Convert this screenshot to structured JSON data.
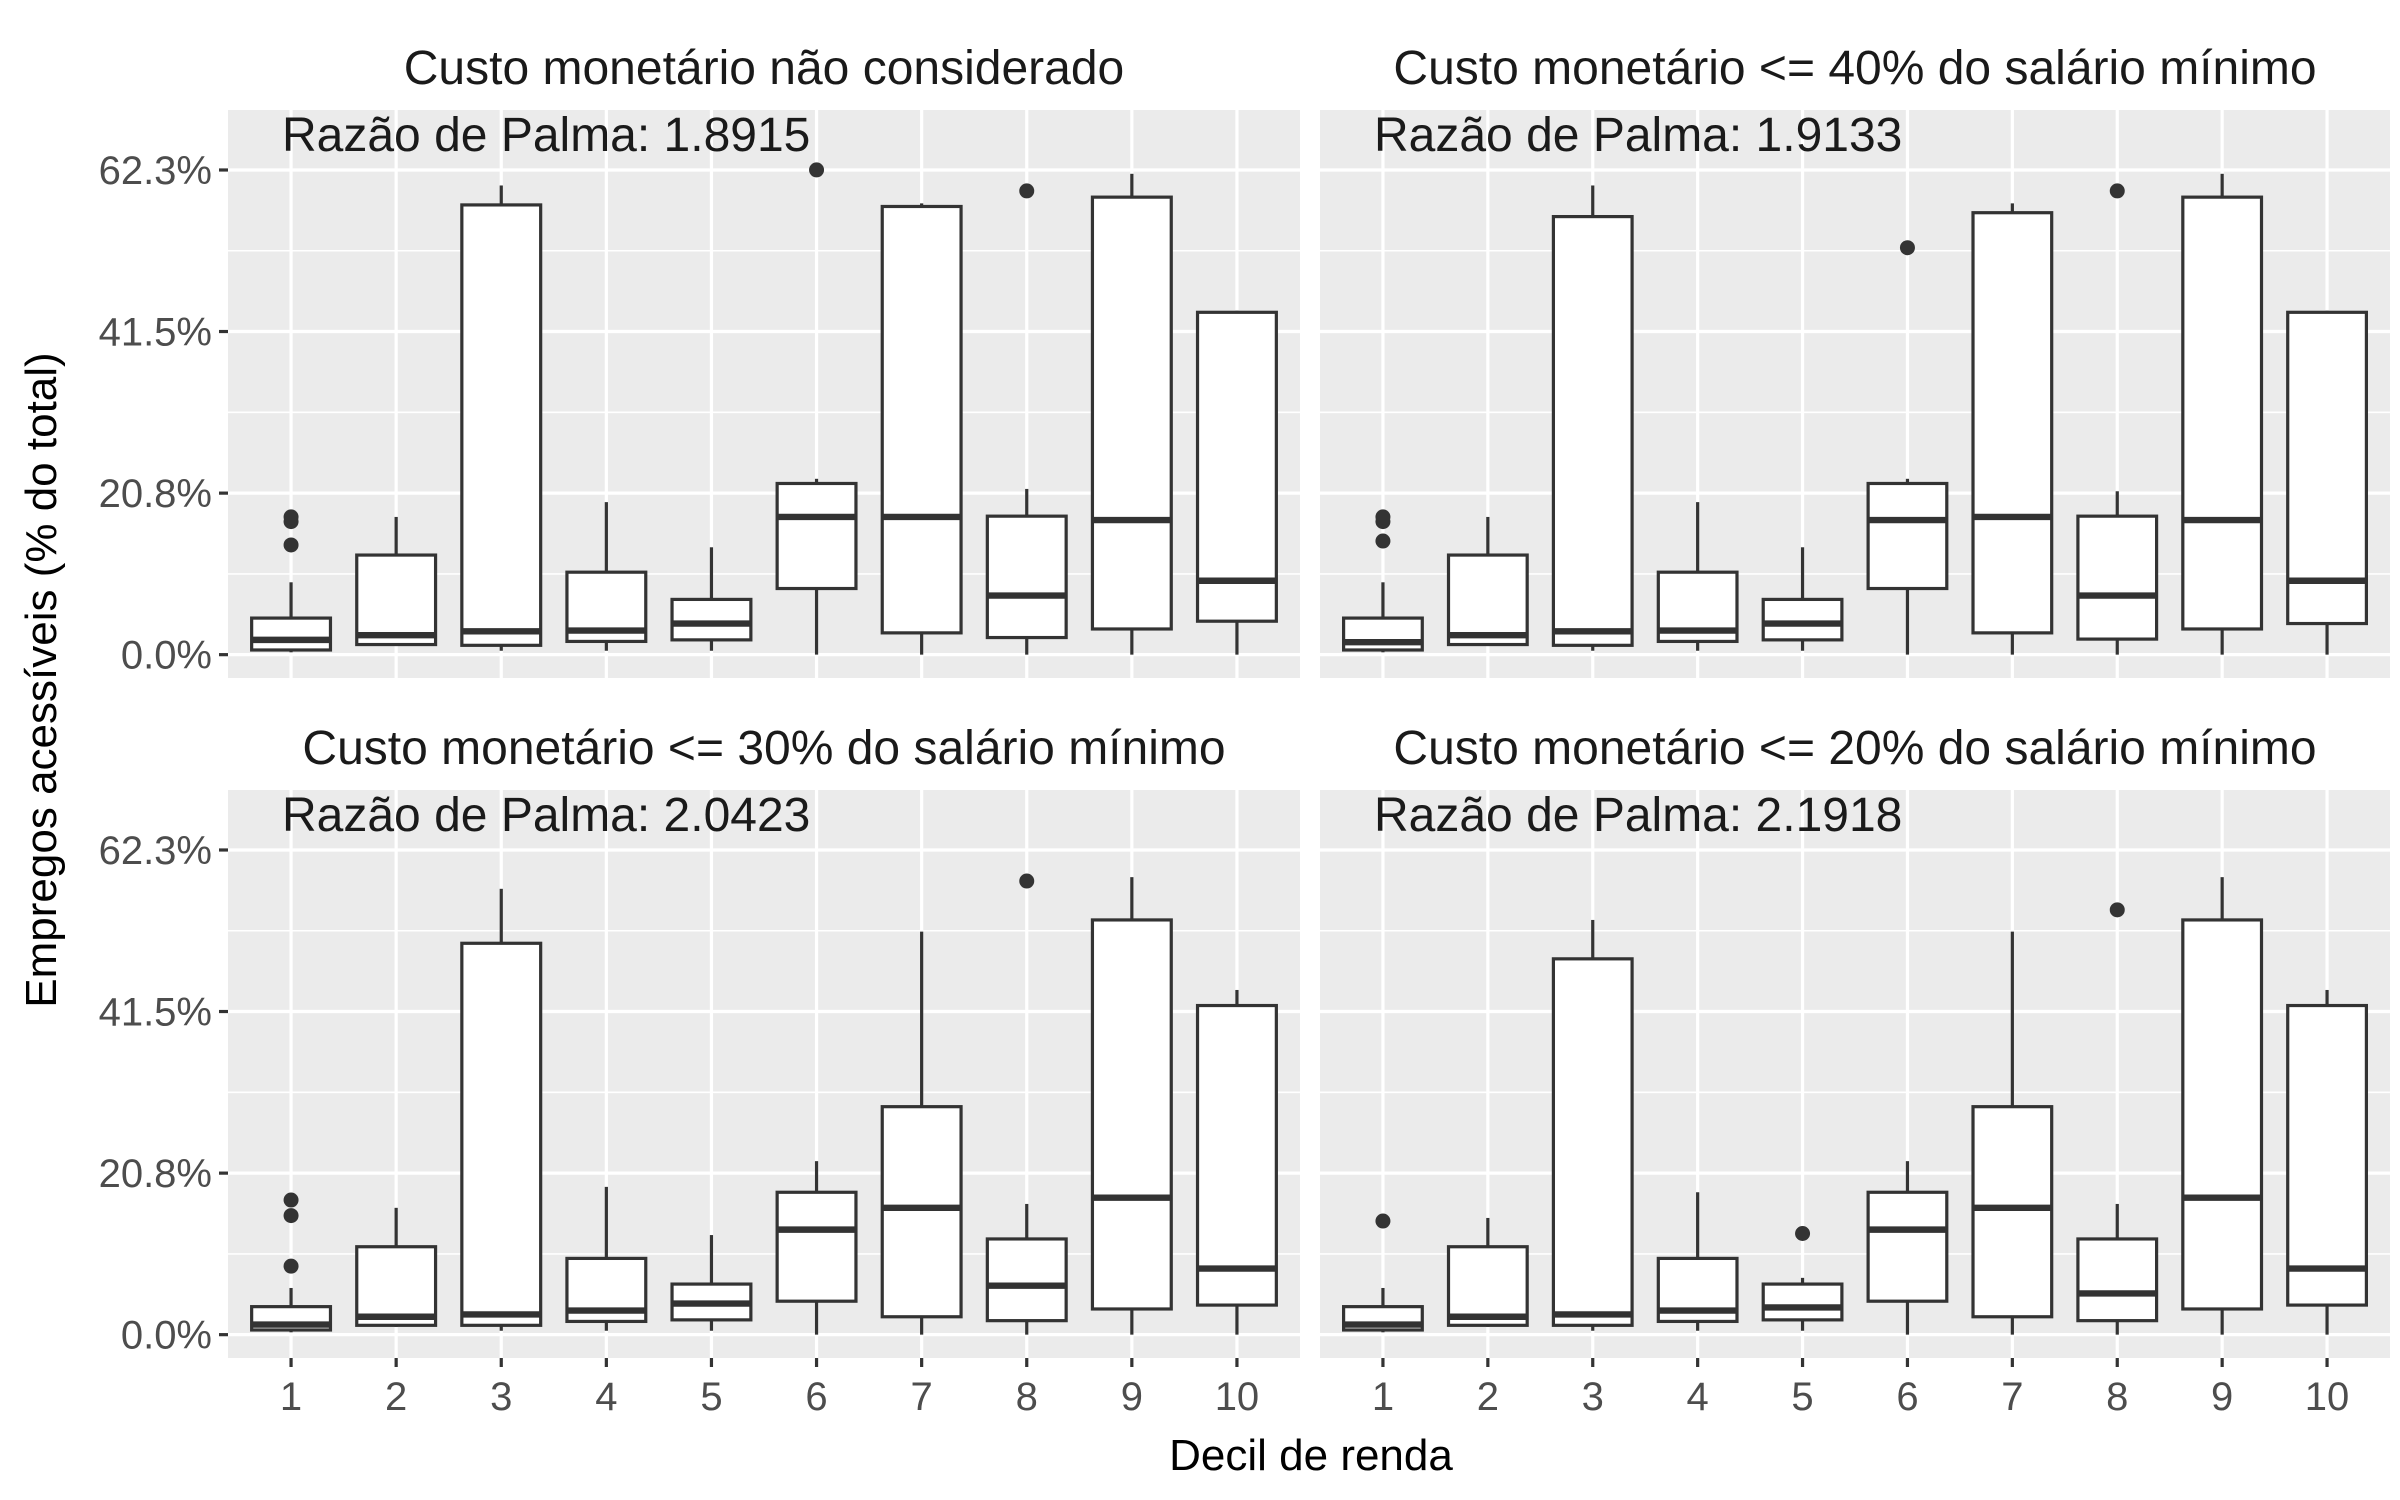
{
  "chart_data": {
    "type": "boxplot",
    "xlabel": "Decil de renda",
    "ylabel": "Empregos acessíveis (% do total)",
    "categories": [
      "1",
      "2",
      "3",
      "4",
      "5",
      "6",
      "7",
      "8",
      "9",
      "10"
    ],
    "ylim": [
      -0.03,
      0.7
    ],
    "y_ticks": [
      {
        "value": 0.0,
        "label": "0.0%"
      },
      {
        "value": 0.2076,
        "label": "20.8%"
      },
      {
        "value": 0.4153,
        "label": "41.5%"
      },
      {
        "value": 0.6229,
        "label": "62.3%"
      }
    ],
    "grid": true,
    "facets": [
      {
        "title": "Custo monetário não considerado",
        "annotation": "Razão de Palma: 1.8915",
        "boxes": [
          {
            "min": 0.003,
            "q1": 0.006,
            "median": 0.019,
            "q3": 0.047,
            "max": 0.093,
            "outliers": [
              0.141,
              0.171,
              0.177
            ]
          },
          {
            "min": 0.012,
            "q1": 0.013,
            "median": 0.025,
            "q3": 0.128,
            "max": 0.177,
            "outliers": []
          },
          {
            "min": 0.005,
            "q1": 0.012,
            "median": 0.03,
            "q3": 0.578,
            "max": 0.603,
            "outliers": []
          },
          {
            "min": 0.005,
            "q1": 0.017,
            "median": 0.031,
            "q3": 0.106,
            "max": 0.196,
            "outliers": []
          },
          {
            "min": 0.005,
            "q1": 0.019,
            "median": 0.04,
            "q3": 0.071,
            "max": 0.138,
            "outliers": []
          },
          {
            "min": 0.0,
            "q1": 0.085,
            "median": 0.177,
            "q3": 0.22,
            "max": 0.226,
            "outliers": [
              0.623
            ]
          },
          {
            "min": 0.0,
            "q1": 0.028,
            "median": 0.177,
            "q3": 0.576,
            "max": 0.58,
            "outliers": []
          },
          {
            "min": 0.0,
            "q1": 0.022,
            "median": 0.076,
            "q3": 0.178,
            "max": 0.213,
            "outliers": [
              0.596
            ]
          },
          {
            "min": 0.0,
            "q1": 0.033,
            "median": 0.173,
            "q3": 0.588,
            "max": 0.618,
            "outliers": []
          },
          {
            "min": 0.0,
            "q1": 0.043,
            "median": 0.095,
            "q3": 0.44,
            "max": 0.442,
            "outliers": []
          }
        ]
      },
      {
        "title": "Custo monetário <= 40% do salário mínimo",
        "annotation": "Razão de Palma: 1.9133",
        "boxes": [
          {
            "min": 0.003,
            "q1": 0.006,
            "median": 0.016,
            "q3": 0.047,
            "max": 0.093,
            "outliers": [
              0.146,
              0.171,
              0.177
            ]
          },
          {
            "min": 0.012,
            "q1": 0.013,
            "median": 0.025,
            "q3": 0.128,
            "max": 0.177,
            "outliers": []
          },
          {
            "min": 0.005,
            "q1": 0.012,
            "median": 0.03,
            "q3": 0.563,
            "max": 0.603,
            "outliers": []
          },
          {
            "min": 0.005,
            "q1": 0.017,
            "median": 0.031,
            "q3": 0.106,
            "max": 0.196,
            "outliers": []
          },
          {
            "min": 0.005,
            "q1": 0.019,
            "median": 0.04,
            "q3": 0.071,
            "max": 0.138,
            "outliers": []
          },
          {
            "min": 0.0,
            "q1": 0.085,
            "median": 0.173,
            "q3": 0.22,
            "max": 0.226,
            "outliers": [
              0.523
            ]
          },
          {
            "min": 0.0,
            "q1": 0.028,
            "median": 0.177,
            "q3": 0.568,
            "max": 0.58,
            "outliers": []
          },
          {
            "min": 0.0,
            "q1": 0.02,
            "median": 0.076,
            "q3": 0.178,
            "max": 0.21,
            "outliers": [
              0.596
            ]
          },
          {
            "min": 0.0,
            "q1": 0.033,
            "median": 0.173,
            "q3": 0.588,
            "max": 0.618,
            "outliers": []
          },
          {
            "min": 0.0,
            "q1": 0.04,
            "median": 0.095,
            "q3": 0.44,
            "max": 0.442,
            "outliers": []
          }
        ]
      },
      {
        "title": "Custo monetário <= 30% do salário mínimo",
        "annotation": "Razão de Palma: 2.0423",
        "boxes": [
          {
            "min": 0.003,
            "q1": 0.006,
            "median": 0.013,
            "q3": 0.036,
            "max": 0.06,
            "outliers": [
              0.088,
              0.153,
              0.173
            ]
          },
          {
            "min": 0.01,
            "q1": 0.012,
            "median": 0.023,
            "q3": 0.113,
            "max": 0.163,
            "outliers": []
          },
          {
            "min": 0.005,
            "q1": 0.012,
            "median": 0.026,
            "q3": 0.503,
            "max": 0.573,
            "outliers": []
          },
          {
            "min": 0.005,
            "q1": 0.017,
            "median": 0.031,
            "q3": 0.098,
            "max": 0.19,
            "outliers": []
          },
          {
            "min": 0.005,
            "q1": 0.019,
            "median": 0.04,
            "q3": 0.065,
            "max": 0.128,
            "outliers": []
          },
          {
            "min": 0.0,
            "q1": 0.043,
            "median": 0.135,
            "q3": 0.183,
            "max": 0.223,
            "outliers": []
          },
          {
            "min": 0.0,
            "q1": 0.023,
            "median": 0.163,
            "q3": 0.293,
            "max": 0.518,
            "outliers": []
          },
          {
            "min": 0.0,
            "q1": 0.018,
            "median": 0.063,
            "q3": 0.123,
            "max": 0.168,
            "outliers": [
              0.583
            ]
          },
          {
            "min": 0.0,
            "q1": 0.033,
            "median": 0.176,
            "q3": 0.533,
            "max": 0.588,
            "outliers": []
          },
          {
            "min": 0.0,
            "q1": 0.038,
            "median": 0.085,
            "q3": 0.423,
            "max": 0.443,
            "outliers": []
          }
        ]
      },
      {
        "title": "Custo monetário <= 20% do salário mínimo",
        "annotation": "Razão de Palma: 2.1918",
        "boxes": [
          {
            "min": 0.003,
            "q1": 0.006,
            "median": 0.013,
            "q3": 0.036,
            "max": 0.06,
            "outliers": [
              0.146
            ]
          },
          {
            "min": 0.01,
            "q1": 0.012,
            "median": 0.023,
            "q3": 0.113,
            "max": 0.15,
            "outliers": []
          },
          {
            "min": 0.005,
            "q1": 0.012,
            "median": 0.026,
            "q3": 0.483,
            "max": 0.533,
            "outliers": []
          },
          {
            "min": 0.005,
            "q1": 0.017,
            "median": 0.031,
            "q3": 0.098,
            "max": 0.183,
            "outliers": []
          },
          {
            "min": 0.005,
            "q1": 0.019,
            "median": 0.035,
            "q3": 0.065,
            "max": 0.073,
            "outliers": [
              0.13
            ]
          },
          {
            "min": 0.0,
            "q1": 0.043,
            "median": 0.135,
            "q3": 0.183,
            "max": 0.223,
            "outliers": []
          },
          {
            "min": 0.0,
            "q1": 0.023,
            "median": 0.163,
            "q3": 0.293,
            "max": 0.518,
            "outliers": []
          },
          {
            "min": 0.0,
            "q1": 0.018,
            "median": 0.053,
            "q3": 0.123,
            "max": 0.168,
            "outliers": [
              0.546
            ]
          },
          {
            "min": 0.0,
            "q1": 0.033,
            "median": 0.176,
            "q3": 0.533,
            "max": 0.588,
            "outliers": []
          },
          {
            "min": 0.0,
            "q1": 0.038,
            "median": 0.085,
            "q3": 0.423,
            "max": 0.443,
            "outliers": []
          }
        ]
      }
    ]
  }
}
